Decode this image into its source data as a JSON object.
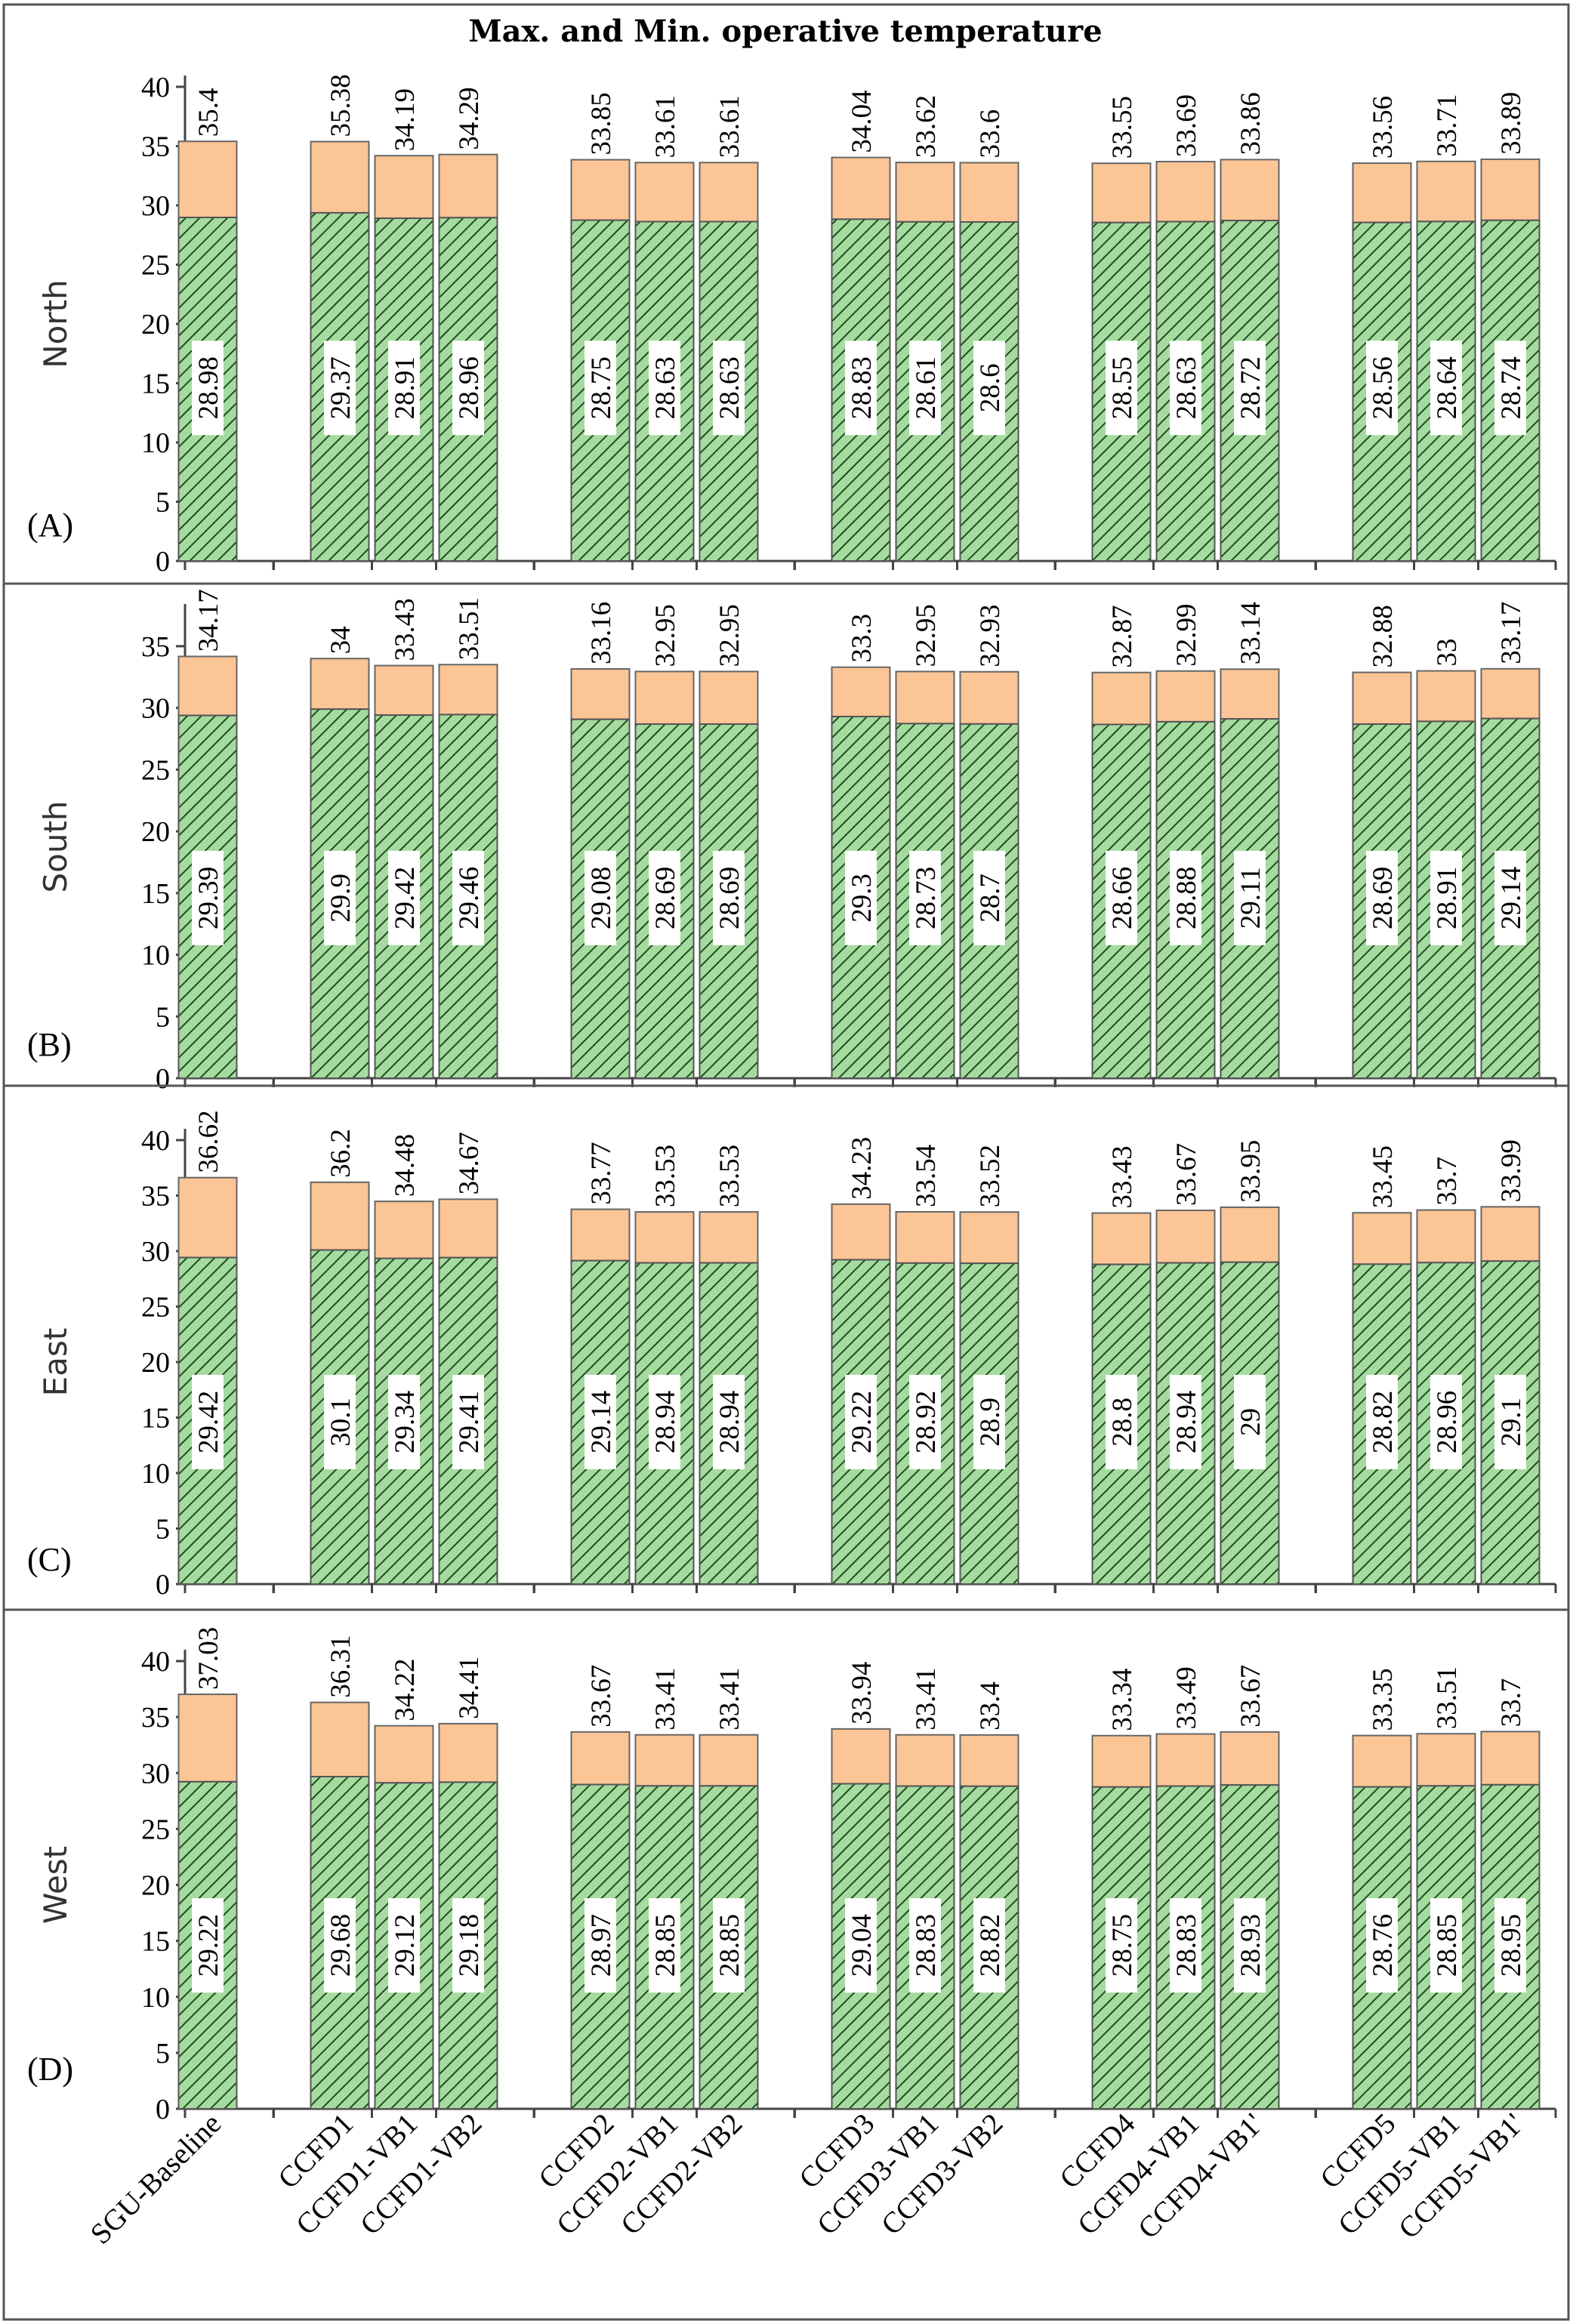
{
  "chart_data": {
    "type": "bar",
    "title": "Max. and Min. operative temperature",
    "categories": [
      "SGU-Baseline",
      "CCFD1",
      "CCFD1-VB1",
      "CCFD1-VB2",
      "CCFD2",
      "CCFD2-VB1",
      "CCFD2-VB2",
      "CCFD3",
      "CCFD3-VB1",
      "CCFD3-VB2",
      "CCFD4",
      "CCFD4-VB1",
      "CCFD4-VB1'",
      "CCFD5",
      "CCFD5-VB1",
      "CCFD5-VB1'"
    ],
    "panels": [
      {
        "label": "(A)",
        "ylabel": "North",
        "ylim": [
          0,
          40
        ],
        "yticks": [
          "0",
          "5",
          "10",
          "15",
          "20",
          "25",
          "30",
          "35",
          "40"
        ],
        "max": [
          35.4,
          35.38,
          34.19,
          34.29,
          33.85,
          33.61,
          33.61,
          34.04,
          33.62,
          33.6,
          33.55,
          33.69,
          33.86,
          33.56,
          33.71,
          33.89
        ],
        "min": [
          28.98,
          29.37,
          28.91,
          28.96,
          28.75,
          28.63,
          28.63,
          28.83,
          28.61,
          28.6,
          28.55,
          28.63,
          28.72,
          28.56,
          28.64,
          28.74
        ],
        "max_labels": [
          "35.4",
          "35.38",
          "34.19",
          "34.29",
          "33.85",
          "33.61",
          "33.61",
          "34.04",
          "33.62",
          "33.6",
          "33.55",
          "33.69",
          "33.86",
          "33.56",
          "33.71",
          "33.89"
        ],
        "min_labels": [
          "28.98",
          "29.37",
          "28.91",
          "28.96",
          "28.75",
          "28.63",
          "28.63",
          "28.83",
          "28.61",
          "28.6",
          "28.55",
          "28.63",
          "28.72",
          "28.56",
          "28.64",
          "28.74"
        ]
      },
      {
        "label": "(B)",
        "ylabel": "South",
        "ylim": [
          0,
          37.5
        ],
        "yticks": [
          "0",
          "5",
          "10",
          "15",
          "20",
          "25",
          "30",
          "35"
        ],
        "max": [
          34.17,
          34,
          33.43,
          33.51,
          33.16,
          32.95,
          32.95,
          33.3,
          32.95,
          32.93,
          32.87,
          32.99,
          33.14,
          32.88,
          33,
          33.17
        ],
        "min": [
          29.39,
          29.9,
          29.42,
          29.46,
          29.08,
          28.69,
          28.69,
          29.3,
          28.73,
          28.7,
          28.66,
          28.88,
          29.11,
          28.69,
          28.91,
          29.14
        ],
        "max_labels": [
          "34.17",
          "34",
          "33.43",
          "33.51",
          "33.16",
          "32.95",
          "32.95",
          "33.3",
          "32.95",
          "32.93",
          "32.87",
          "32.99",
          "33.14",
          "32.88",
          "33",
          "33.17"
        ],
        "min_labels": [
          "29.39",
          "29.9",
          "29.42",
          "29.46",
          "29.08",
          "28.69",
          "28.69",
          "29.3",
          "28.73",
          "28.7",
          "28.66",
          "28.88",
          "29.11",
          "28.69",
          "28.91",
          "29.14"
        ]
      },
      {
        "label": "(C)",
        "ylabel": "East",
        "ylim": [
          0,
          40
        ],
        "yticks": [
          "0",
          "5",
          "10",
          "15",
          "20",
          "25",
          "30",
          "35",
          "40"
        ],
        "max": [
          36.62,
          36.2,
          34.48,
          34.67,
          33.77,
          33.53,
          33.53,
          34.23,
          33.54,
          33.52,
          33.43,
          33.67,
          33.95,
          33.45,
          33.7,
          33.99
        ],
        "min": [
          29.42,
          30.1,
          29.34,
          29.41,
          29.14,
          28.94,
          28.94,
          29.22,
          28.92,
          28.9,
          28.8,
          28.94,
          29,
          28.82,
          28.96,
          29.1
        ],
        "max_labels": [
          "36.62",
          "36.2",
          "34.48",
          "34.67",
          "33.77",
          "33.53",
          "33.53",
          "34.23",
          "33.54",
          "33.52",
          "33.43",
          "33.67",
          "33.95",
          "33.45",
          "33.7",
          "33.99"
        ],
        "min_labels": [
          "29.42",
          "30.1",
          "29.34",
          "29.41",
          "29.14",
          "28.94",
          "28.94",
          "29.22",
          "28.92",
          "28.9",
          "28.8",
          "28.94",
          "29",
          "28.82",
          "28.96",
          "29.1"
        ]
      },
      {
        "label": "(D)",
        "ylabel": "West",
        "ylim": [
          0,
          40
        ],
        "yticks": [
          "0",
          "5",
          "10",
          "15",
          "20",
          "25",
          "30",
          "35",
          "40"
        ],
        "max": [
          37.03,
          36.31,
          34.22,
          34.41,
          33.67,
          33.41,
          33.41,
          33.94,
          33.41,
          33.4,
          33.34,
          33.49,
          33.67,
          33.35,
          33.51,
          33.7
        ],
        "min": [
          29.22,
          29.68,
          29.12,
          29.18,
          28.97,
          28.85,
          28.85,
          29.04,
          28.83,
          28.82,
          28.75,
          28.83,
          28.93,
          28.76,
          28.85,
          28.95
        ],
        "max_labels": [
          "37.03",
          "36.31",
          "34.22",
          "34.41",
          "33.67",
          "33.41",
          "33.41",
          "33.94",
          "33.41",
          "33.4",
          "33.34",
          "33.49",
          "33.67",
          "33.35",
          "33.51",
          "33.7"
        ],
        "min_labels": [
          "29.22",
          "29.68",
          "29.12",
          "29.18",
          "28.97",
          "28.85",
          "28.85",
          "29.04",
          "28.83",
          "28.82",
          "28.75",
          "28.83",
          "28.93",
          "28.76",
          "28.85",
          "28.95"
        ]
      }
    ],
    "colors": {
      "max": "#fbc596",
      "min": "#a6dba0",
      "hatch": "#1e4d1e",
      "axis": "#444444",
      "frame": "#555555"
    }
  }
}
